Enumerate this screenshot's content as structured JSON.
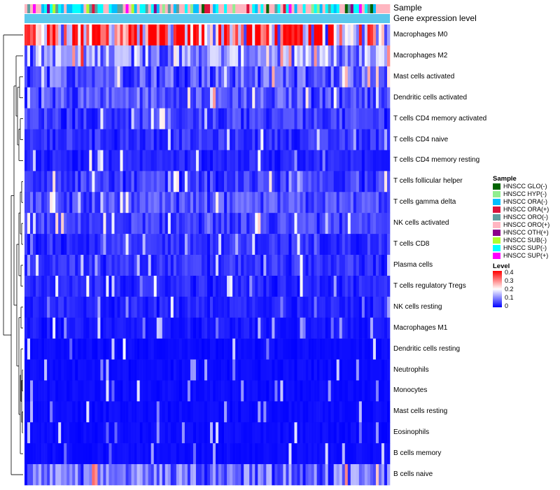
{
  "chart_data": {
    "type": "heatmap",
    "title": "",
    "annotation_rows": [
      "Sample",
      "Gene expression level"
    ],
    "row_labels": [
      "Macrophages M0",
      "Macrophages M2",
      "Mast cells activated",
      "Dendritic cells activated",
      "T cells CD4 memory activated",
      "T cells CD4 naive",
      "T cells CD4 memory resting",
      "T cells follicular helper",
      "T cells gamma delta",
      "NK cells activated",
      "T cells CD8",
      "Plasma cells",
      "T cells regulatory  Tregs",
      "NK cells resting",
      "Macrophages M1",
      "Dendritic cells resting",
      "Neutrophils",
      "Monocytes",
      "Mast cells resting",
      "Eosinophils",
      "B cells memory",
      "B cells naive"
    ],
    "row_mean_levels": [
      0.3,
      0.12,
      0.08,
      0.07,
      0.05,
      0.04,
      0.03,
      0.05,
      0.06,
      0.05,
      0.04,
      0.04,
      0.03,
      0.03,
      0.02,
      0.01,
      0.01,
      0.01,
      0.01,
      0.01,
      0.01,
      0.09
    ],
    "n_samples": 130,
    "sample_legend": {
      "title": "Sample",
      "items": [
        {
          "label": "HNSCC GLO(-)",
          "color": "#006400"
        },
        {
          "label": "HNSCC HYP(-)",
          "color": "#90ee90"
        },
        {
          "label": "HNSCC ORA(-)",
          "color": "#00bfff"
        },
        {
          "label": "HNSCC ORA(+)",
          "color": "#dc143c"
        },
        {
          "label": "HNSCC ORO(-)",
          "color": "#5f9ea0"
        },
        {
          "label": "HNSCC ORO(+)",
          "color": "#ffb6c1"
        },
        {
          "label": "HNSCC OTH(+)",
          "color": "#8b008b"
        },
        {
          "label": "HNSCC SUB(-)",
          "color": "#adff2f"
        },
        {
          "label": "HNSCC SUP(-)",
          "color": "#00ffff"
        },
        {
          "label": "HNSCC SUP(+)",
          "color": "#ff00ff"
        }
      ]
    },
    "level_legend": {
      "title": "Level",
      "range": [
        0,
        0.4
      ],
      "ticks": [
        "0.4",
        "0.3",
        "0.2",
        "0.1",
        "0"
      ],
      "colors": [
        "#0000ff",
        "#ffffff",
        "#ff0000"
      ]
    },
    "expression_annotation_color": "#5bc8ec"
  }
}
